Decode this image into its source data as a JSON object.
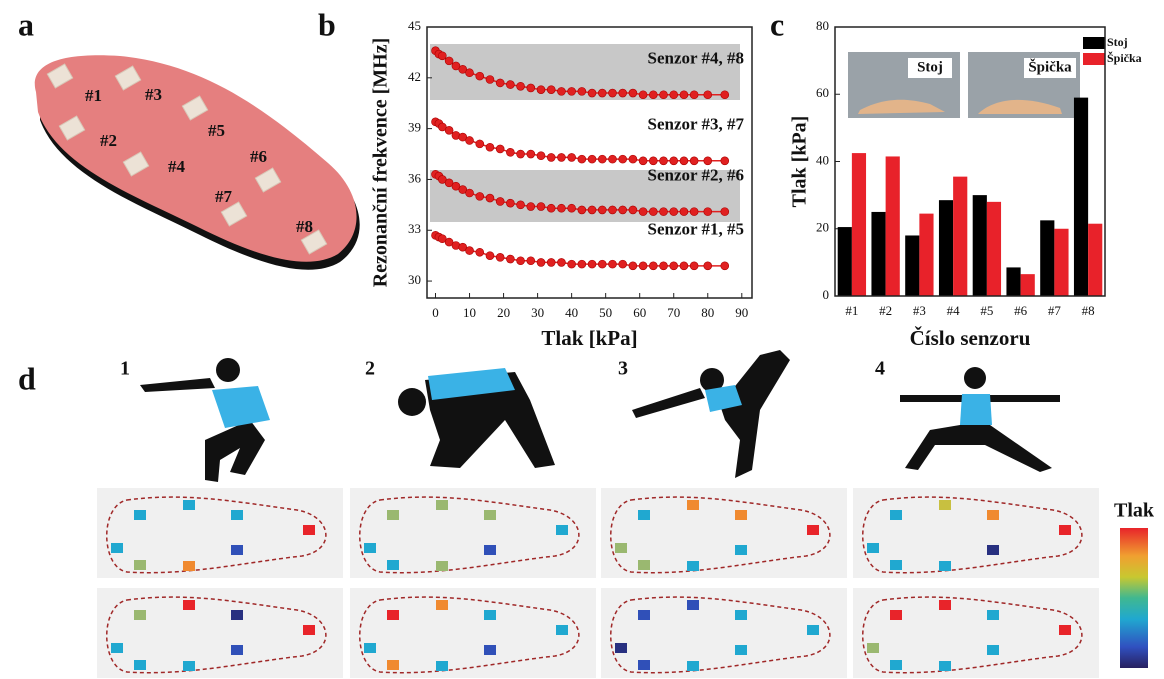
{
  "panel_labels": [
    "a",
    "b",
    "c",
    "d"
  ],
  "insole_sensors": [
    "#1",
    "#2",
    "#3",
    "#4",
    "#5",
    "#6",
    "#7",
    "#8"
  ],
  "poses": [
    "1",
    "2",
    "3",
    "4"
  ],
  "colorbar_label": "Tlak",
  "chart_data": [
    {
      "type": "line",
      "ylabel": "Rezonanční frekvence [MHz]",
      "xlabel": "Tlak [kPa]",
      "x": [
        0,
        1,
        2,
        4,
        6,
        8,
        10,
        13,
        16,
        19,
        22,
        25,
        28,
        31,
        34,
        37,
        40,
        43,
        46,
        49,
        52,
        55,
        58,
        61,
        64,
        67,
        70,
        73,
        76,
        80,
        85
      ],
      "xlim": [
        -2.5,
        93
      ],
      "xticks": [
        0,
        10,
        20,
        30,
        40,
        50,
        60,
        70,
        80,
        90
      ],
      "ylim": [
        29,
        45
      ],
      "yticks": [
        30,
        33,
        36,
        39,
        42,
        45
      ],
      "series": [
        {
          "name": "Senzor #4, #8",
          "color": "#e02020",
          "values": [
            43.6,
            43.4,
            43.3,
            43.0,
            42.7,
            42.5,
            42.3,
            42.1,
            41.9,
            41.7,
            41.6,
            41.5,
            41.4,
            41.3,
            41.3,
            41.2,
            41.2,
            41.2,
            41.1,
            41.1,
            41.1,
            41.1,
            41.1,
            41.0,
            41.0,
            41.0,
            41.0,
            41.0,
            41.0,
            41.0,
            41.0
          ]
        },
        {
          "name": "Senzor #3, #7",
          "color": "#e02020",
          "values": [
            39.4,
            39.3,
            39.1,
            38.9,
            38.6,
            38.5,
            38.3,
            38.1,
            37.9,
            37.8,
            37.6,
            37.5,
            37.5,
            37.4,
            37.3,
            37.3,
            37.3,
            37.2,
            37.2,
            37.2,
            37.2,
            37.2,
            37.2,
            37.1,
            37.1,
            37.1,
            37.1,
            37.1,
            37.1,
            37.1,
            37.1
          ]
        },
        {
          "name": "Senzor #2, #6",
          "color": "#e02020",
          "values": [
            36.3,
            36.2,
            36.0,
            35.8,
            35.6,
            35.4,
            35.2,
            35.0,
            34.9,
            34.7,
            34.6,
            34.5,
            34.4,
            34.4,
            34.3,
            34.3,
            34.3,
            34.2,
            34.2,
            34.2,
            34.2,
            34.2,
            34.2,
            34.1,
            34.1,
            34.1,
            34.1,
            34.1,
            34.1,
            34.1,
            34.1
          ]
        },
        {
          "name": "Senzor #1, #5",
          "color": "#e02020",
          "values": [
            32.7,
            32.6,
            32.5,
            32.3,
            32.1,
            32.0,
            31.8,
            31.7,
            31.5,
            31.4,
            31.3,
            31.2,
            31.2,
            31.1,
            31.1,
            31.1,
            31.0,
            31.0,
            31.0,
            31.0,
            31.0,
            31.0,
            30.9,
            30.9,
            30.9,
            30.9,
            30.9,
            30.9,
            30.9,
            30.9,
            30.9
          ]
        }
      ]
    },
    {
      "type": "bar",
      "ylabel": "Tlak [kPa]",
      "xlabel": "Číslo senzoru",
      "categories": [
        "#1",
        "#2",
        "#3",
        "#4",
        "#5",
        "#6",
        "#7",
        "#8"
      ],
      "ylim": [
        0,
        80
      ],
      "yticks": [
        0,
        20,
        40,
        60,
        80
      ],
      "legend": "upper right",
      "series": [
        {
          "name": "Stoj",
          "color": "#000000",
          "values": [
            20.5,
            25,
            18,
            28.5,
            30,
            8.5,
            22.5,
            59
          ]
        },
        {
          "name": "Špička",
          "color": "#e8222a",
          "values": [
            42.5,
            41.5,
            24.5,
            35.5,
            28,
            6.5,
            20,
            21.5
          ]
        }
      ]
    }
  ]
}
